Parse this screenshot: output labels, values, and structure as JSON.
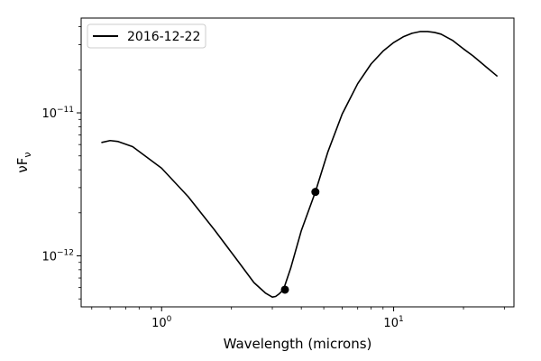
{
  "chart_data": {
    "type": "line",
    "xlabel": "Wavelength (microns)",
    "ylabel": "νF",
    "ylabel_sub": "ν",
    "xscale": "log",
    "yscale": "log",
    "xlim": [
      0.45,
      33
    ],
    "ylim": [
      4.4e-13,
      4.6e-11
    ],
    "x_major_ticks": [
      {
        "value": 1,
        "base": "10",
        "exp": "0"
      },
      {
        "value": 10,
        "base": "10",
        "exp": "1"
      }
    ],
    "y_major_ticks": [
      {
        "value": 1e-12,
        "base": "10",
        "exp": "−12"
      },
      {
        "value": 1e-11,
        "base": "10",
        "exp": "−11"
      }
    ],
    "grid": false,
    "legend": {
      "placement": "top-left",
      "entries": [
        "2016-12-22"
      ]
    },
    "series": [
      {
        "name": "2016-12-22",
        "color": "#000000",
        "x": [
          0.55,
          0.6,
          0.65,
          0.75,
          1.0,
          1.3,
          1.7,
          2.1,
          2.5,
          2.8,
          3.0,
          3.1,
          3.2,
          3.35,
          3.6,
          4.0,
          4.6,
          5.2,
          6.0,
          7.0,
          8.0,
          9.0,
          10.0,
          11.0,
          12.0,
          13.0,
          14.0,
          15.0,
          16.0,
          18.0,
          20.0,
          22.0,
          25.0,
          28.0
        ],
        "y": [
          6.2e-12,
          6.4e-12,
          6.3e-12,
          5.8e-12,
          4.1e-12,
          2.6e-12,
          1.5e-12,
          9.5e-13,
          6.5e-13,
          5.5e-13,
          5.15e-13,
          5.2e-13,
          5.4e-13,
          5.8e-13,
          8.2e-13,
          1.5e-12,
          2.8e-12,
          5.3e-12,
          9.8e-12,
          1.6e-11,
          2.2e-11,
          2.7e-11,
          3.1e-11,
          3.4e-11,
          3.6e-11,
          3.7e-11,
          3.7e-11,
          3.65e-11,
          3.55e-11,
          3.2e-11,
          2.8e-11,
          2.5e-11,
          2.1e-11,
          1.8e-11
        ]
      }
    ],
    "markers": [
      {
        "x": 3.4,
        "y": 5.8e-13
      },
      {
        "x": 4.6,
        "y": 2.8e-12
      }
    ]
  }
}
